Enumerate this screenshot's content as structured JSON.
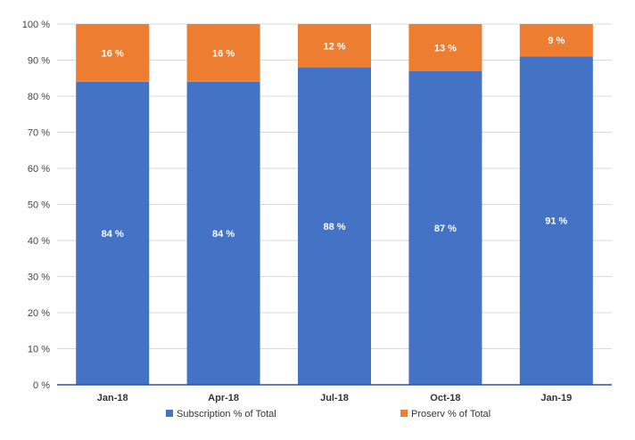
{
  "chart_data": {
    "type": "bar",
    "stacked": true,
    "categories": [
      "Jan-18",
      "Apr-18",
      "Jul-18",
      "Oct-18",
      "Jan-19"
    ],
    "series": [
      {
        "name": "Subscription % of Total",
        "values": [
          84,
          84,
          88,
          87,
          91
        ],
        "labels": [
          "84 %",
          "84 %",
          "88 %",
          "87 %",
          "91 %"
        ],
        "color": "#4472c4"
      },
      {
        "name": "Proserv % of Total",
        "values": [
          16,
          16,
          12,
          13,
          9
        ],
        "labels": [
          "16 %",
          "16 %",
          "12 %",
          "13 %",
          "9 %"
        ],
        "color": "#ed7d31"
      }
    ],
    "ylim": [
      0,
      100
    ],
    "yticks": [
      "0 %",
      "10 %",
      "20 %",
      "30 %",
      "40 %",
      "50 %",
      "60 %",
      "70 %",
      "80 %",
      "90 %",
      "100 %"
    ],
    "grid": true,
    "legend_position": "bottom",
    "title": "",
    "xlabel": "",
    "ylabel": ""
  }
}
